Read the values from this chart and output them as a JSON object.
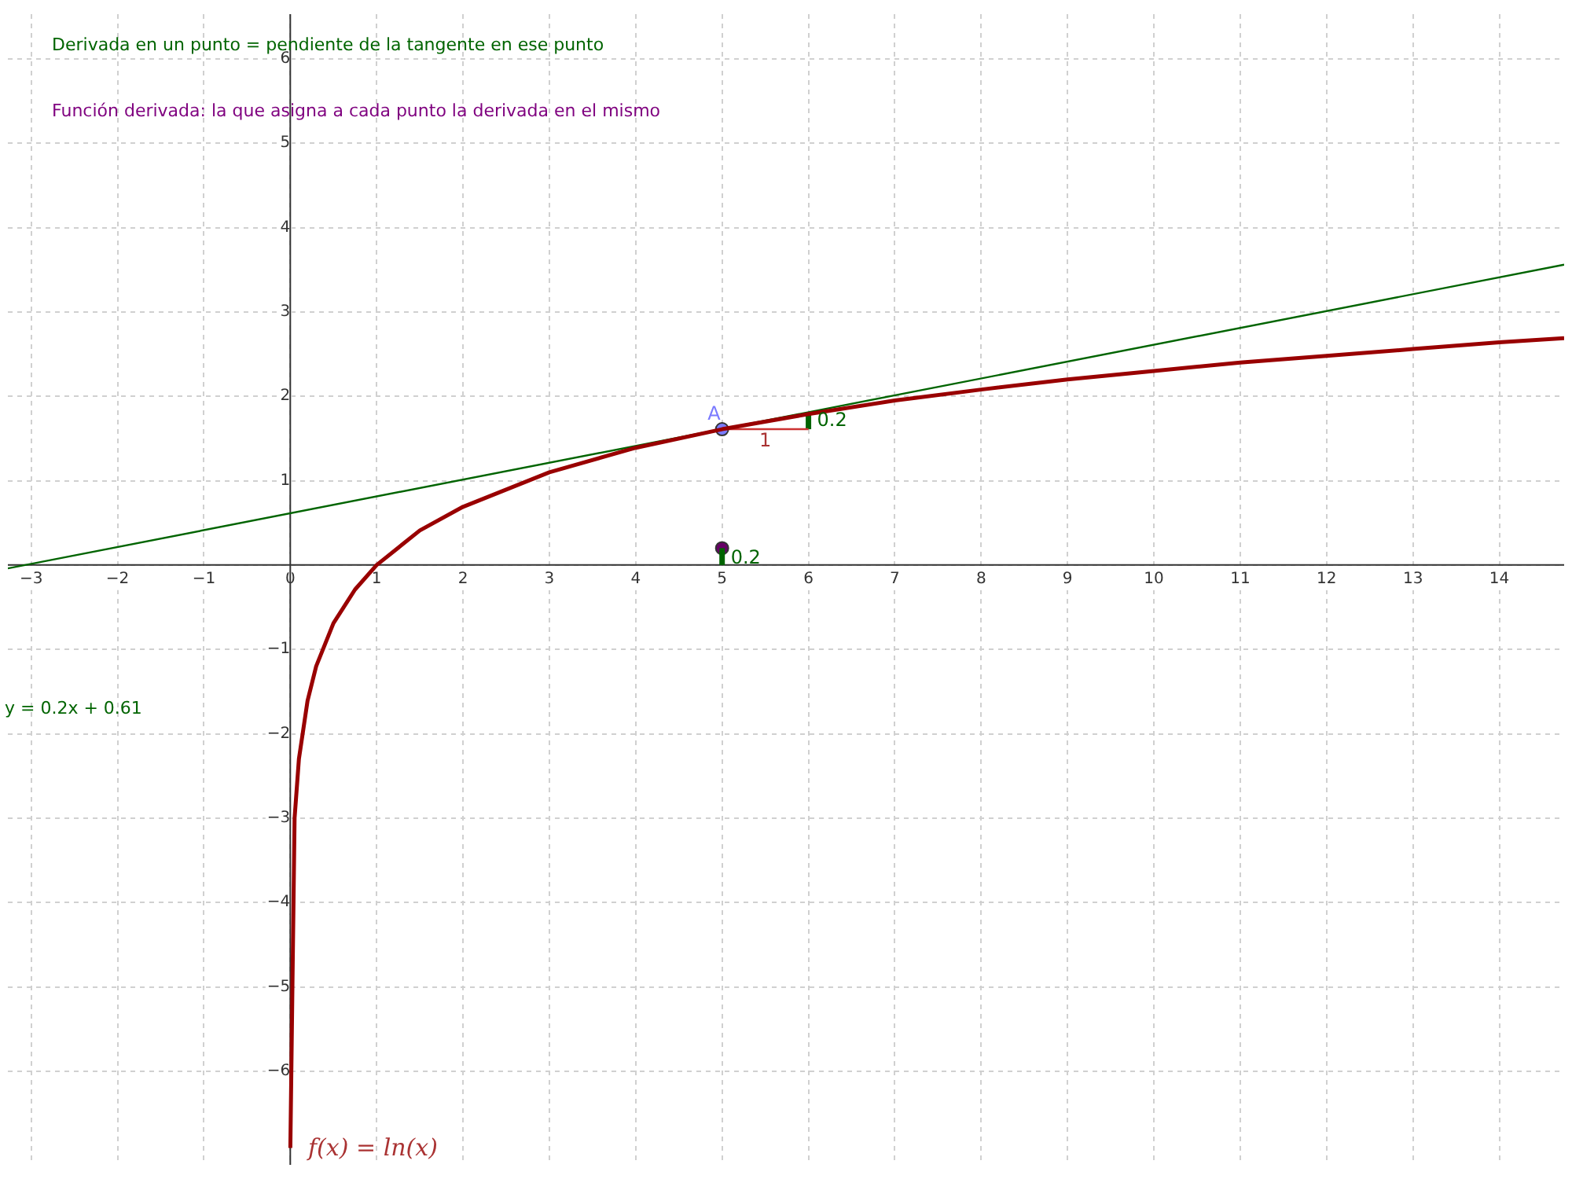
{
  "chart_data": {
    "type": "line",
    "annotations": [
      "Derivada en un punto = pendiente de la tangente en ese punto",
      "Función derivada: la que asigna a cada punto la derivada en el mismo",
      "y = 0.2x + 0.61",
      "f(x) = ln(x)",
      "1",
      {
        "text": "0.2",
        "x": 6.1,
        "y": 1.71
      },
      {
        "text": "0.2",
        "x": 5.1,
        "y": 0.08
      }
    ],
    "series": [
      {
        "color": "#990000",
        "x": [
          0.001,
          0.05,
          0.1,
          0.2,
          0.3,
          0.5,
          0.75,
          1,
          1.5,
          2,
          3,
          4,
          5,
          6,
          7,
          8,
          9,
          10,
          11,
          12,
          13,
          14,
          14.75
        ],
        "values": [
          -6.91,
          -3.0,
          -2.3,
          -1.61,
          -1.2,
          -0.69,
          -0.29,
          0,
          0.41,
          0.69,
          1.1,
          1.39,
          1.61,
          1.79,
          1.95,
          2.08,
          2.2,
          2.3,
          2.4,
          2.48,
          2.56,
          2.64,
          2.69
        ]
      },
      {
        "color": "#006400",
        "x": [
          -3.27,
          14.75
        ],
        "values": [
          -0.04,
          3.56
        ]
      },
      {
        "color": "#cc3333",
        "x": [
          5,
          6
        ],
        "values": [
          1.61,
          1.61
        ]
      },
      {
        "color": "#006400",
        "x": [
          6,
          6
        ],
        "values": [
          1.61,
          1.81
        ]
      },
      {
        "color": "#006400",
        "x": [
          5,
          5
        ],
        "values": [
          0,
          0.2
        ]
      },
      {
        "type": "scatter",
        "marker": "circle",
        "name": "A",
        "color": "#7b7bff",
        "x": [
          5
        ],
        "values": [
          1.61
        ]
      },
      {
        "type": "scatter",
        "marker": "circle",
        "color": "#660066",
        "x": [
          5
        ],
        "values": [
          0.2
        ]
      }
    ],
    "xlim": [
      -3.27,
      14.75
    ],
    "ylim": [
      -7.11,
      6.53
    ],
    "xticks": [
      -3,
      -2,
      -1,
      0,
      1,
      2,
      3,
      4,
      5,
      6,
      7,
      8,
      9,
      10,
      11,
      12,
      13,
      14
    ],
    "yticks": [
      -6,
      -5,
      -4,
      -3,
      -2,
      -1,
      {
        "value": 0,
        "label": null
      },
      1,
      2,
      3,
      4,
      5,
      6
    ],
    "grid": true,
    "legend": false
  }
}
